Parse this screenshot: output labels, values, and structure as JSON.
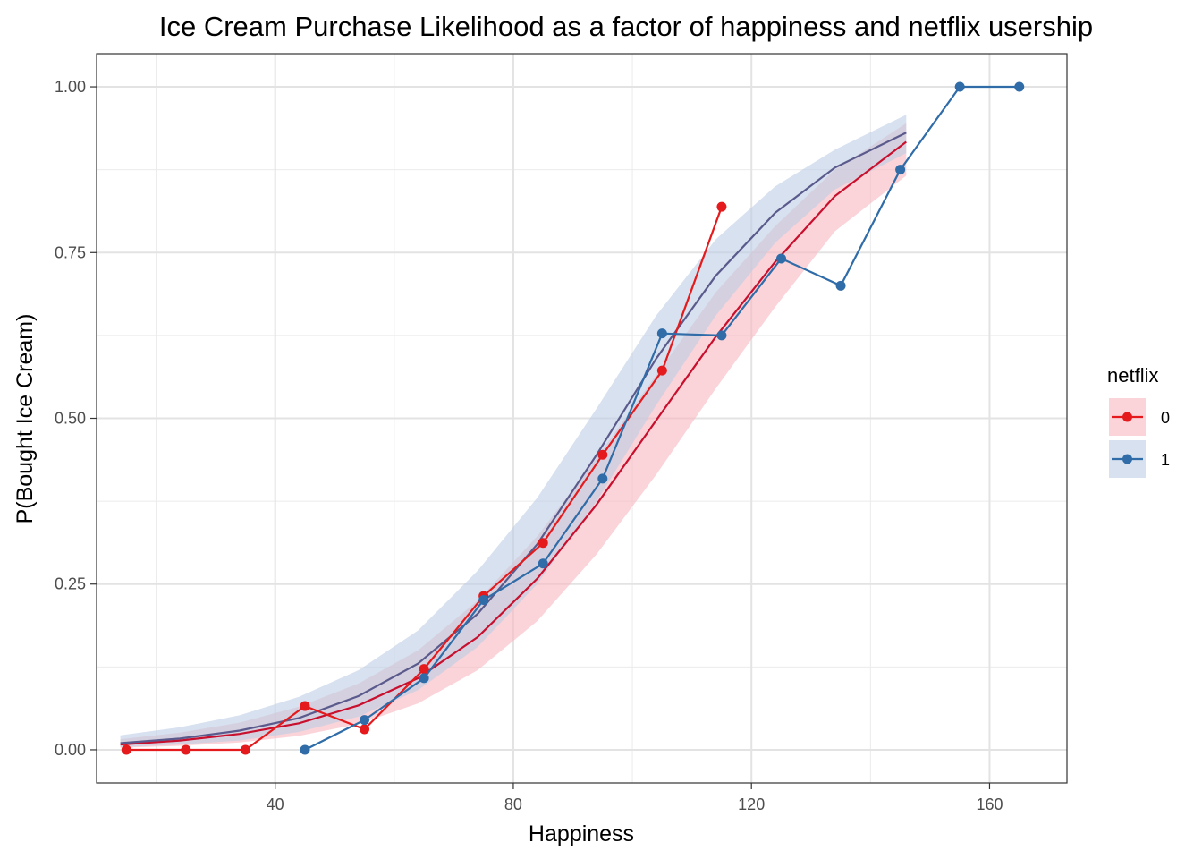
{
  "chart_data": {
    "type": "line",
    "title": "Ice Cream Purchase Likelihood as a factor of happiness and netflix usership",
    "xlabel": "Happiness",
    "ylabel": "P(Bought Ice Cream)",
    "xlim": [
      10,
      173
    ],
    "ylim": [
      -0.05,
      1.05
    ],
    "x_ticks": [
      40,
      80,
      120,
      160
    ],
    "x_tick_labels": [
      "40",
      "80",
      "120",
      "160"
    ],
    "y_ticks": [
      0,
      0.25,
      0.5,
      0.75,
      1.0
    ],
    "y_tick_labels": [
      "0.00",
      "0.25",
      "0.50",
      "0.75",
      "1.00"
    ],
    "grid": true,
    "legend": {
      "title": "netflix",
      "placement": "right"
    },
    "series": [
      {
        "name": "0",
        "color": "#E41A1C",
        "fill_color": "#F8B7C0",
        "observed": {
          "x": [
            15,
            25,
            35,
            45,
            55,
            65,
            75,
            85,
            95,
            105,
            115
          ],
          "y": [
            0.0,
            0.0,
            0.0,
            0.066,
            0.031,
            0.122,
            0.232,
            0.312,
            0.445,
            0.572,
            0.819
          ]
        },
        "fit": {
          "x": [
            14,
            24,
            34,
            44,
            54,
            64,
            74,
            84,
            94,
            104,
            114,
            124,
            134,
            146
          ],
          "y": [
            0.008,
            0.014,
            0.024,
            0.04,
            0.067,
            0.108,
            0.17,
            0.258,
            0.37,
            0.497,
            0.623,
            0.736,
            0.835,
            0.917
          ],
          "lower": [
            0.003,
            0.006,
            0.011,
            0.021,
            0.039,
            0.07,
            0.12,
            0.194,
            0.295,
            0.415,
            0.545,
            0.668,
            0.782,
            0.866
          ],
          "upper": [
            0.016,
            0.026,
            0.041,
            0.065,
            0.1,
            0.15,
            0.225,
            0.322,
            0.44,
            0.565,
            0.69,
            0.79,
            0.875,
            0.945
          ]
        }
      },
      {
        "name": "1",
        "color": "#2F6CA8",
        "fill_color": "#BCCDE5",
        "observed": {
          "x": [
            45,
            55,
            65,
            75,
            85,
            95,
            105,
            115,
            125,
            135,
            145,
            155,
            165
          ],
          "y": [
            0.0,
            0.045,
            0.108,
            0.226,
            0.281,
            0.409,
            0.628,
            0.625,
            0.741,
            0.7,
            0.875,
            1.0,
            1.0
          ]
        },
        "fit": {
          "x": [
            14,
            24,
            34,
            44,
            54,
            64,
            74,
            84,
            94,
            104,
            114,
            124,
            134,
            146
          ],
          "y": [
            0.01,
            0.017,
            0.029,
            0.048,
            0.081,
            0.13,
            0.205,
            0.31,
            0.445,
            0.59,
            0.715,
            0.81,
            0.878,
            0.931
          ],
          "lower": [
            0.004,
            0.008,
            0.014,
            0.027,
            0.05,
            0.09,
            0.155,
            0.25,
            0.375,
            0.52,
            0.655,
            0.765,
            0.845,
            0.9
          ],
          "upper": [
            0.022,
            0.034,
            0.052,
            0.08,
            0.12,
            0.18,
            0.27,
            0.38,
            0.515,
            0.655,
            0.77,
            0.85,
            0.905,
            0.958
          ]
        }
      }
    ]
  }
}
